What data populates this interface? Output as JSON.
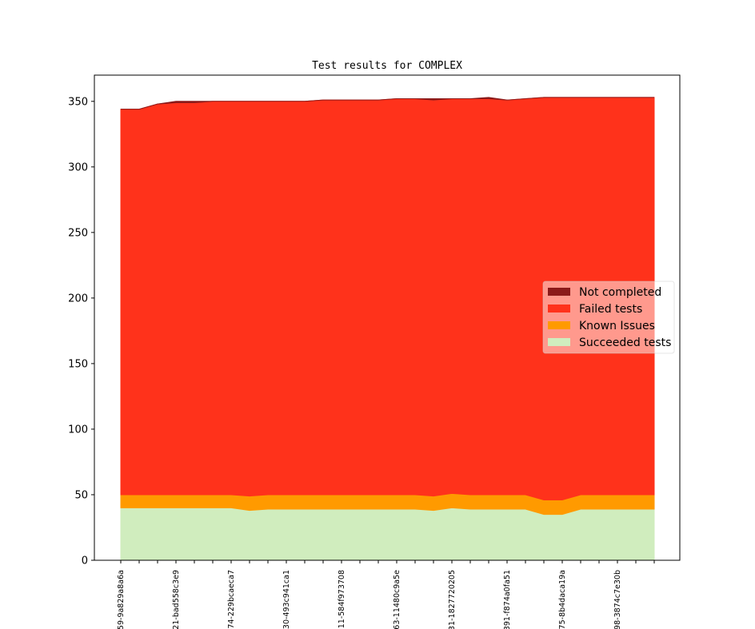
{
  "chart_data": {
    "type": "area",
    "title": "Test results for COMPLEX",
    "xlabel": "",
    "ylabel": "",
    "ylim": [
      0,
      370
    ],
    "yticks": [
      0,
      50,
      100,
      150,
      200,
      250,
      300,
      350
    ],
    "x": [
      0,
      1,
      2,
      3,
      4,
      5,
      6,
      7,
      8,
      9,
      10,
      11,
      12,
      13,
      14,
      15,
      16,
      17,
      18,
      19,
      20,
      21,
      22,
      23,
      24,
      25,
      26,
      27,
      28,
      29
    ],
    "x_tick_labels": [
      {
        "index": 0,
        "label": "59-9a829a8a6a"
      },
      {
        "index": 3,
        "label": "21-bad558c3e9"
      },
      {
        "index": 6,
        "label": "74-229bcaeca7"
      },
      {
        "index": 9,
        "label": "30-493c941ca1"
      },
      {
        "index": 12,
        "label": "11-584f973708"
      },
      {
        "index": 15,
        "label": "63-11480c9a5e"
      },
      {
        "index": 18,
        "label": "31-1827720205"
      },
      {
        "index": 21,
        "label": "391-f874a0fa51"
      },
      {
        "index": 24,
        "label": "75-8b4daca19a"
      },
      {
        "index": 27,
        "label": "98-3874c7e30b"
      }
    ],
    "grid": false,
    "legend_position": "center-right",
    "series": [
      {
        "name": "Succeeded tests",
        "color": "#d0edbe",
        "values": [
          40,
          40,
          40,
          40,
          40,
          40,
          40,
          38,
          39,
          39,
          39,
          39,
          39,
          39,
          39,
          39,
          39,
          38,
          40,
          39,
          39,
          39,
          39,
          35,
          35,
          39,
          39,
          39,
          39,
          39
        ]
      },
      {
        "name": "Known Issues",
        "color": "#ff9a00",
        "values": [
          10,
          10,
          10,
          10,
          10,
          10,
          10,
          11,
          11,
          11,
          11,
          11,
          11,
          11,
          11,
          11,
          11,
          11,
          11,
          11,
          11,
          11,
          11,
          11,
          11,
          11,
          11,
          11,
          11,
          11
        ]
      },
      {
        "name": "Failed tests",
        "color": "#ff321b",
        "values": [
          294,
          294,
          298,
          299,
          299,
          300,
          300,
          301,
          300,
          300,
          300,
          301,
          301,
          301,
          301,
          302,
          302,
          302,
          301,
          302,
          302,
          301,
          302,
          307,
          307,
          303,
          303,
          303,
          303,
          303
        ]
      },
      {
        "name": "Not completed",
        "color": "#8b1a1a",
        "values": [
          0,
          0,
          0,
          1,
          1,
          0,
          0,
          0,
          0,
          0,
          0,
          0,
          0,
          0,
          0,
          0,
          0,
          1,
          0,
          0,
          1,
          0,
          0,
          0,
          0,
          0,
          0,
          0,
          0,
          0
        ]
      }
    ]
  }
}
